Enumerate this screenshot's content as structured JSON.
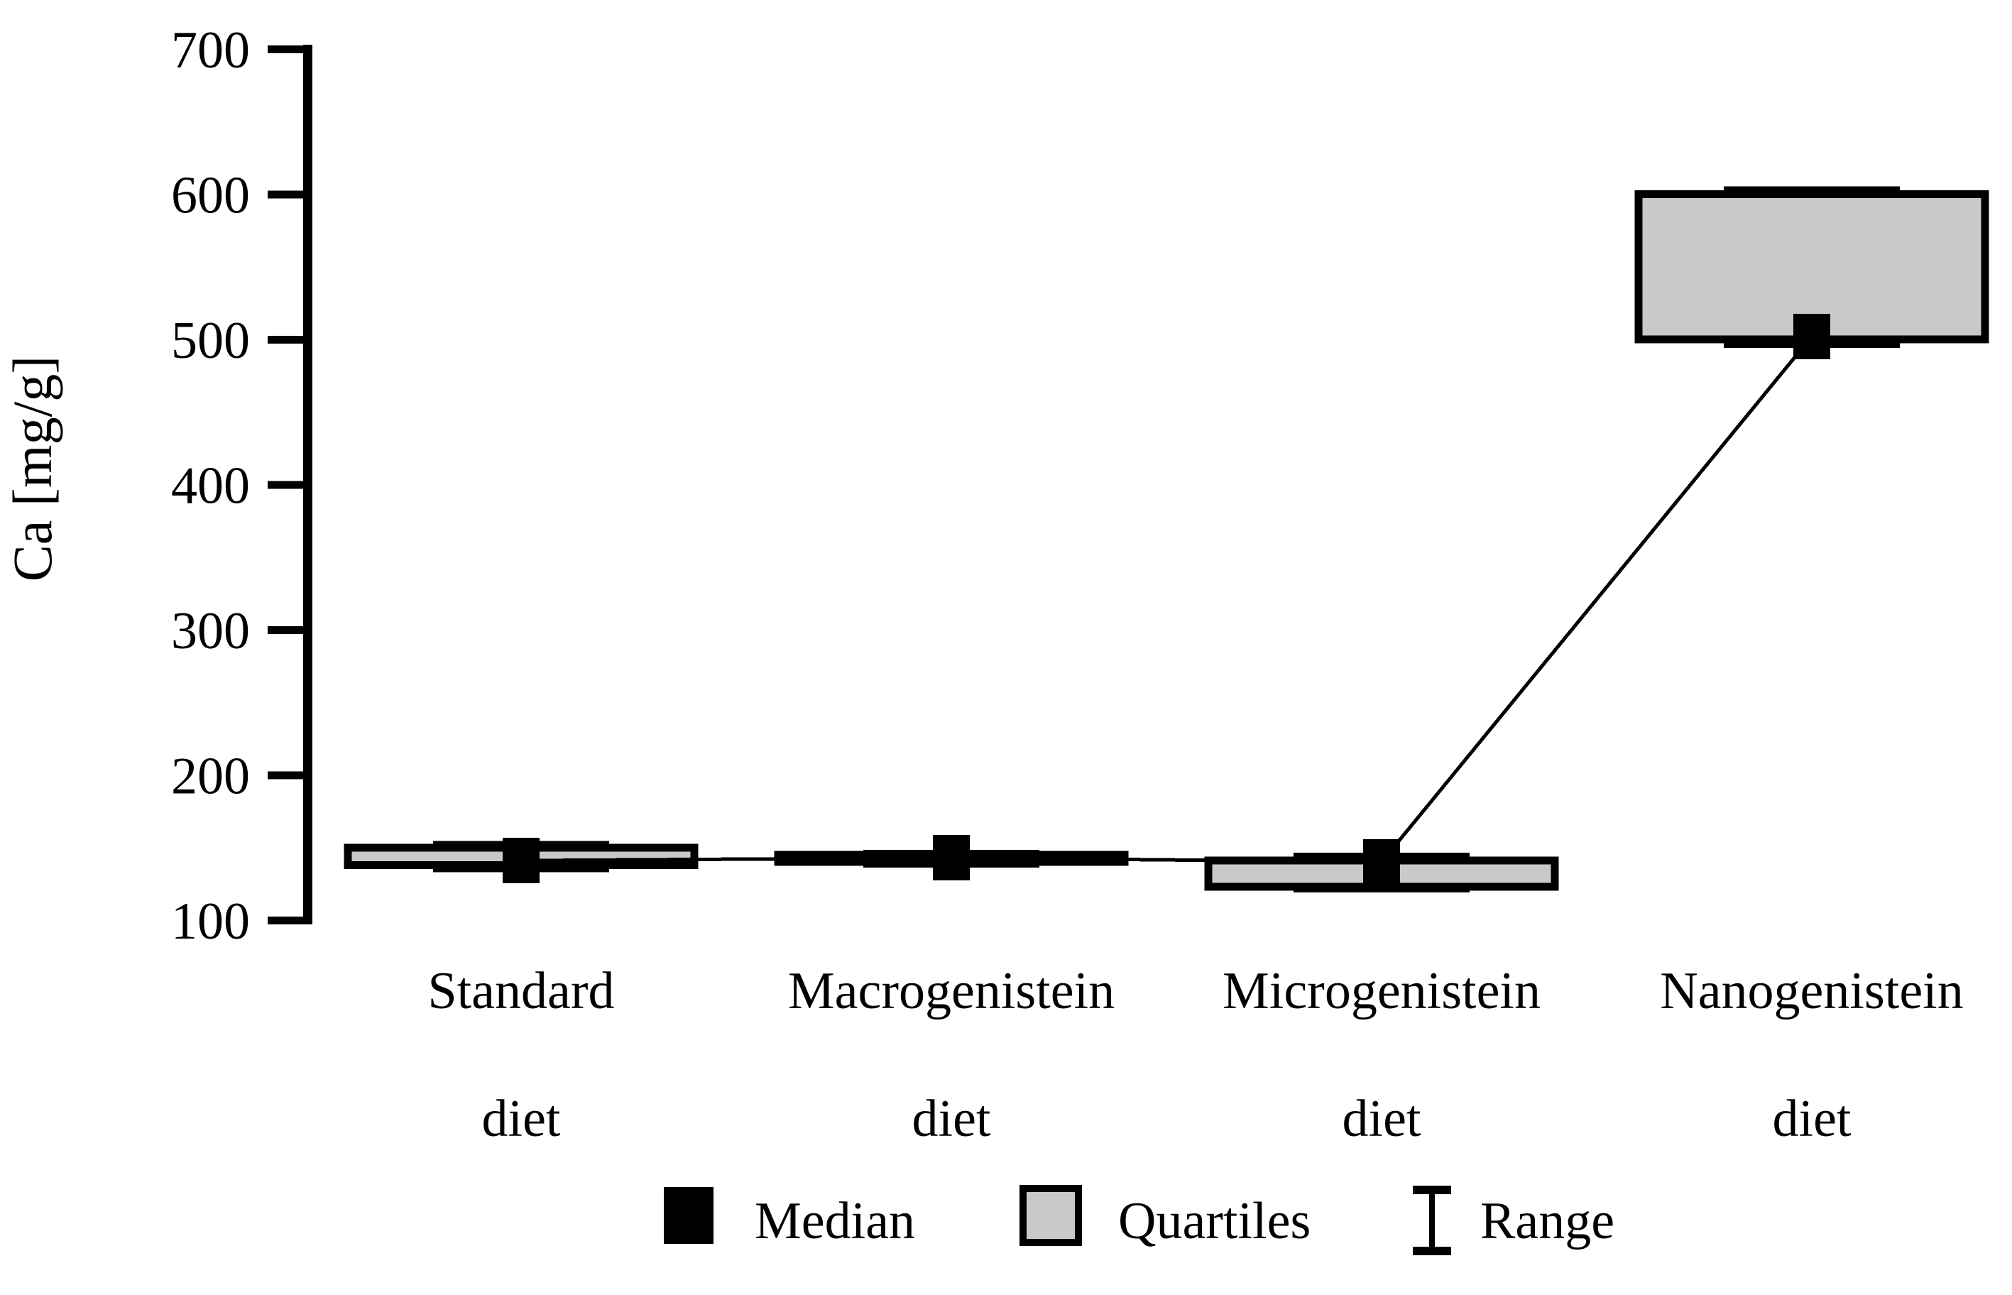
{
  "figure": {
    "background": "#ffffff"
  },
  "chart_data": {
    "type": "box",
    "title": "",
    "xlabel": "",
    "ylabel": "Ca [mg/g]",
    "ylim": [
      100,
      700
    ],
    "yticks": [
      700,
      600,
      500,
      400,
      300,
      200,
      100
    ],
    "grid": false,
    "legend_position": "bottom",
    "categories": [
      {
        "line1": "Standard",
        "line2": "diet"
      },
      {
        "line1": "Macrogenistein",
        "line2": "diet"
      },
      {
        "line1": "Microgenistein",
        "line2": "diet"
      },
      {
        "line1": "Nanogenistein",
        "line2": "diet"
      }
    ],
    "series": [
      {
        "name": "Standard diet",
        "min": 136,
        "q1": 138,
        "median": 141,
        "q3": 150,
        "max": 152
      },
      {
        "name": "Macrogenistein diet",
        "min": 139,
        "q1": 140,
        "median": 143,
        "q3": 145,
        "max": 146
      },
      {
        "name": "Microgenistein diet",
        "min": 122,
        "q1": 123,
        "median": 140,
        "q3": 141,
        "max": 144
      },
      {
        "name": "Nanogenistein diet",
        "min": 497,
        "q1": 500,
        "median": 502,
        "q3": 600,
        "max": 603
      }
    ],
    "median_connector": true,
    "legend": [
      {
        "swatch": "median-square",
        "label": "Median"
      },
      {
        "swatch": "quartiles-box",
        "label": "Quartiles"
      },
      {
        "swatch": "range-ibeam",
        "label": "Range"
      }
    ],
    "colors": {
      "stroke": "#000000",
      "box_fill": "#c9c9c9",
      "median": "#000000",
      "background": "#ffffff"
    }
  }
}
